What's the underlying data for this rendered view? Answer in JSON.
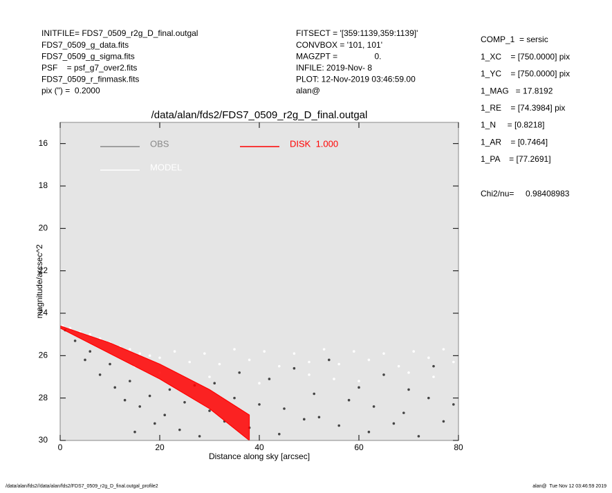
{
  "header": {
    "left": [
      "INITFILE= FDS7_0509_r2g_D_final.outgal",
      "FDS7_0509_g_data.fits",
      "FDS7_0509_g_sigma.fits",
      "PSF    = psf_g7_over2.fits",
      "FDS7_0509_r_finmask.fits",
      "pix (\") =  0.2000"
    ],
    "middle": [
      "FITSECT = '[359:1139,359:1139]'",
      "CONVBOX = '101, 101'",
      "MAGZPT =                0.",
      "INFILE: 2019-Nov- 8",
      "PLOT: 12-Nov-2019 03:46:59.00",
      "alan@"
    ],
    "right": [
      "COMP_1  = sersic",
      "1_XC    = [750.0000] pix",
      "1_YC    = [750.0000] pix",
      "1_MAG   = 17.8192",
      "1_RE    = [74.3984] pix",
      "1_N     = [0.8218]",
      "1_AR    = [0.7464]",
      "1_PA    = [77.2691]"
    ],
    "chi": "Chi2/nu=     0.98408983"
  },
  "footer": {
    "left": "/data/alan/fds2//data/alan/fds2/FDS7_0509_r2g_D_final.outgal_profile2",
    "right": "alan@  Tue Nov 12 03:46:59 2019"
  },
  "chart_data": {
    "type": "scatter",
    "title": "/data/alan/fds2/FDS7_0509_r2g_D_final.outgal",
    "x_label": "Distance along sky [arcsec]",
    "y_label": "magnitude/arcsec^2",
    "xlim": [
      0,
      80
    ],
    "xticks": [
      0,
      20,
      40,
      60,
      80
    ],
    "ylim": [
      15,
      30
    ],
    "yticks": [
      16,
      18,
      20,
      22,
      24,
      26,
      28,
      30
    ],
    "invert_y": true,
    "legend": "upper-left",
    "series": [
      {
        "name": "OBS",
        "type": "scatter",
        "color": "#444444",
        "legend_color": "#888888",
        "x": [
          1,
          3,
          5,
          6,
          8,
          10,
          11,
          13,
          14,
          15,
          16,
          18,
          19,
          21,
          22,
          24,
          25,
          27,
          28,
          30,
          31,
          33,
          35,
          36,
          38,
          40,
          42,
          44,
          45,
          47,
          49,
          51,
          52,
          54,
          56,
          58,
          60,
          62,
          63,
          65,
          67,
          69,
          70,
          72,
          74,
          75,
          77,
          79
        ],
        "values": [
          24.8,
          25.3,
          26.2,
          25.8,
          26.9,
          26.4,
          27.5,
          28.1,
          27.2,
          29.6,
          28.4,
          27.9,
          29.2,
          28.8,
          27.6,
          29.5,
          28.2,
          27.4,
          29.8,
          28.6,
          27.3,
          29.1,
          28.0,
          26.8,
          29.4,
          28.3,
          27.1,
          29.7,
          28.5,
          26.6,
          29.0,
          27.8,
          28.9,
          26.2,
          29.3,
          28.1,
          27.5,
          29.6,
          28.4,
          26.9,
          29.2,
          28.7,
          27.6,
          29.8,
          28.0,
          26.5,
          29.1,
          28.3
        ]
      },
      {
        "name": "MODEL",
        "type": "scatter",
        "color": "#ffffff",
        "legend_color": "#ffffff",
        "x": [
          0.5,
          2,
          4,
          6,
          8,
          10,
          12,
          14,
          16,
          18,
          20,
          23,
          26,
          29,
          32,
          35,
          38,
          41,
          44,
          47,
          50,
          53,
          56,
          59,
          62,
          65,
          68,
          71,
          74,
          77,
          79,
          30,
          40,
          50,
          60,
          70,
          20,
          15,
          55,
          75
        ],
        "values": [
          24.6,
          24.7,
          24.9,
          25.0,
          25.2,
          25.4,
          25.6,
          25.7,
          25.9,
          26.0,
          26.1,
          25.8,
          26.3,
          25.9,
          26.4,
          25.7,
          26.2,
          25.8,
          26.5,
          25.9,
          26.3,
          25.7,
          26.4,
          25.8,
          26.2,
          25.9,
          26.5,
          25.8,
          26.1,
          25.7,
          26.3,
          27.0,
          27.3,
          26.9,
          27.2,
          26.8,
          26.8,
          26.5,
          27.1,
          27.0
        ]
      },
      {
        "name": "DISK  1.000",
        "type": "band",
        "color": "#ff0000",
        "legend_color": "#ff0000",
        "x": [
          0,
          10,
          20,
          30,
          38
        ],
        "values": [
          24.6,
          25.4,
          26.4,
          27.6,
          28.8
        ],
        "values_faint": [
          24.7,
          25.9,
          27.1,
          28.5,
          30.0
        ]
      }
    ]
  }
}
